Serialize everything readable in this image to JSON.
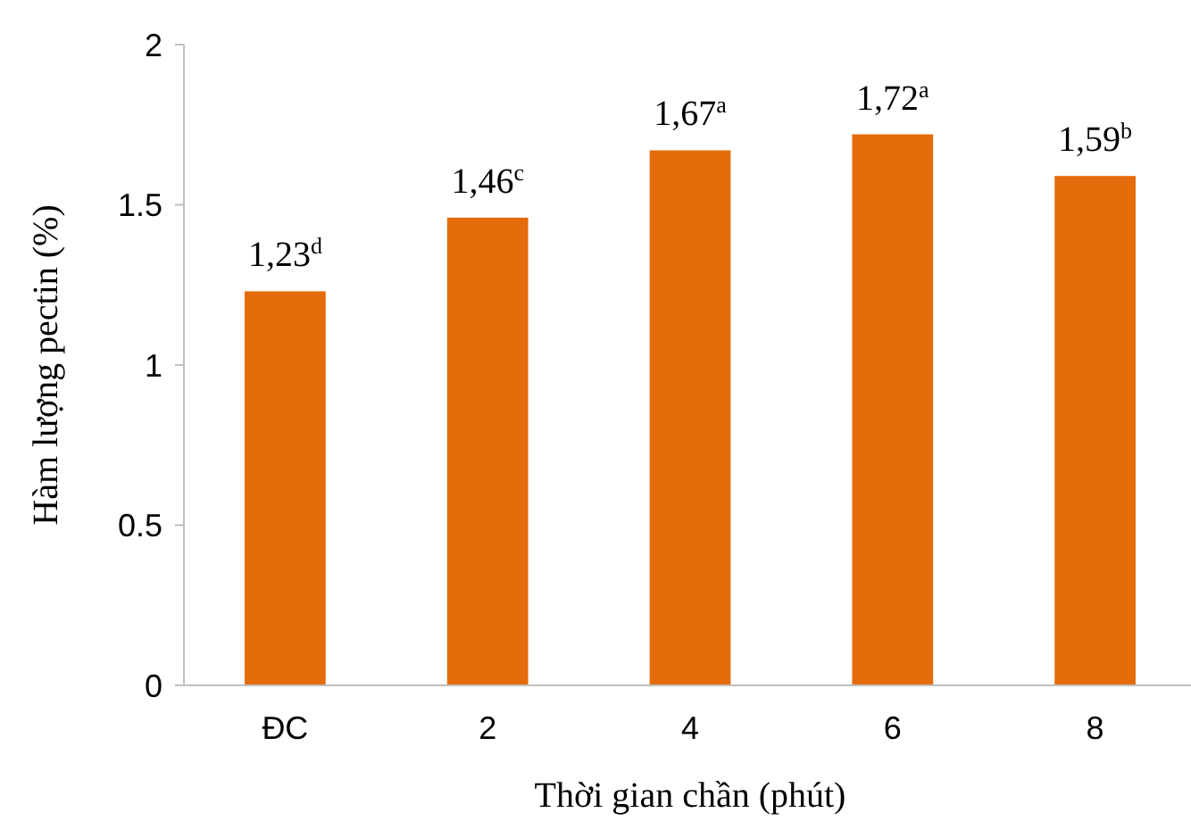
{
  "chart_data": {
    "type": "bar",
    "xlabel": "Thời gian chần (phút)",
    "ylabel": "Hàm lượng pectin (%)",
    "categories": [
      "ĐC",
      "2",
      "4",
      "6",
      "8"
    ],
    "values": [
      1.23,
      1.46,
      1.67,
      1.72,
      1.59
    ],
    "value_labels": [
      "1,23$^{d}$",
      "1,46$^{c}$",
      "1,67$^{a}$",
      "1,72$^{a}$",
      "1,59$^{b}$"
    ],
    "color": "#e46c0a",
    "ylim": [
      0,
      2
    ],
    "yticks": [
      0,
      0.5,
      1,
      1.5,
      2
    ],
    "grid": false
  }
}
